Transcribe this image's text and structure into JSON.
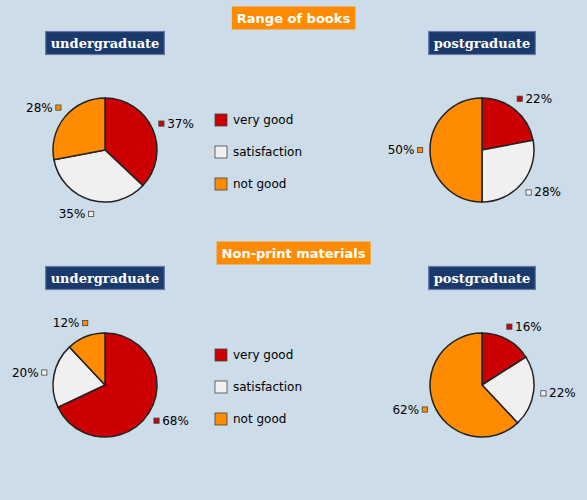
{
  "chart_data": [
    {
      "type": "pie",
      "title": "undergraduate",
      "annotations": [
        "Range of books"
      ],
      "categories": [
        "very good",
        "satisfaction",
        "not good"
      ],
      "values": [
        37,
        35,
        28
      ],
      "value_labels": [
        "37%",
        "35%",
        "28%"
      ],
      "colors": [
        "#cc0000",
        "#f0f0f0",
        "#FF8C00"
      ],
      "data_labels": true,
      "legend": "right"
    },
    {
      "type": "pie",
      "title": "postgraduate",
      "categories": [
        "very good",
        "satisfaction",
        "not good"
      ],
      "values": [
        22,
        28,
        50
      ],
      "value_labels": [
        "22%",
        "28%",
        "50%"
      ],
      "colors": [
        "#cc0000",
        "#f0f0f0",
        "#FF8C00"
      ],
      "data_labels": true
    },
    {
      "type": "pie",
      "title": "undergraduate",
      "annotations": [
        "Non-print materials"
      ],
      "categories": [
        "very good",
        "satisfaction",
        "not good"
      ],
      "values": [
        68,
        20,
        12
      ],
      "value_labels": [
        "68%",
        "20%",
        "12%"
      ],
      "colors": [
        "#cc0000",
        "#f0f0f0",
        "#FF8C00"
      ],
      "data_labels": true,
      "legend": "right"
    },
    {
      "type": "pie",
      "title": "postgraduate",
      "categories": [
        "very good",
        "satisfaction",
        "not good"
      ],
      "values": [
        16,
        22,
        62
      ],
      "value_labels": [
        "16%",
        "22%",
        "62%"
      ],
      "colors": [
        "#cc0000",
        "#f0f0f0",
        "#FF8C00"
      ],
      "data_labels": true
    }
  ]
}
